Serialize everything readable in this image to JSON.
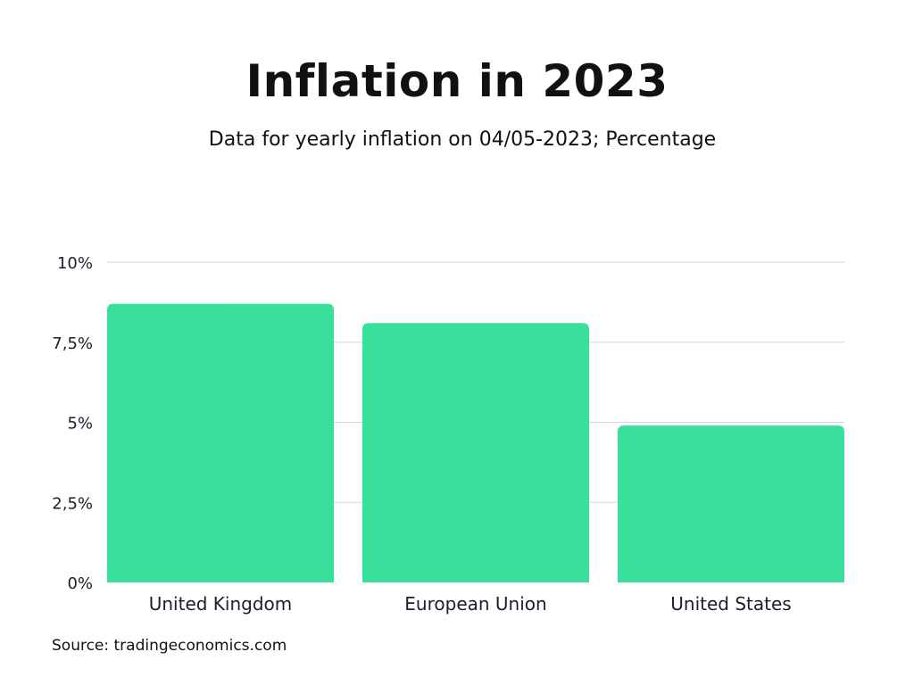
{
  "chart_data": {
    "type": "bar",
    "title": "Inflation in 2023",
    "subtitle": "Data for yearly inflation on 04/05-2023; Percentage",
    "categories": [
      "United Kingdom",
      "European Union",
      "United States"
    ],
    "values": [
      8.7,
      8.1,
      4.9
    ],
    "ylim": [
      0,
      10
    ],
    "yticks": [
      0,
      2.5,
      5,
      7.5,
      10
    ],
    "ytick_labels": [
      "0%",
      "2,5%",
      "5%",
      "7,5%",
      "10%"
    ],
    "grid": true,
    "bar_color": "#38e09c",
    "source": "Source: tradingeconomics.com"
  }
}
